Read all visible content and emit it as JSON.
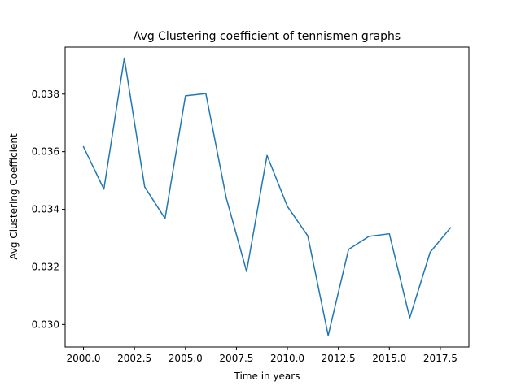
{
  "chart_data": {
    "type": "line",
    "title": "Avg Clustering coefficient of tennismen graphs",
    "xlabel": "Time in years",
    "ylabel": "Avg Clustering Coefficient",
    "xlim": [
      1999.1,
      2018.9
    ],
    "ylim": [
      0.02922,
      0.03963
    ],
    "xticks": [
      2000.0,
      2002.5,
      2005.0,
      2007.5,
      2010.0,
      2012.5,
      2015.0,
      2017.5
    ],
    "xtick_labels": [
      "2000.0",
      "2002.5",
      "2005.0",
      "2007.5",
      "2010.0",
      "2012.5",
      "2015.0",
      "2017.5"
    ],
    "yticks": [
      0.03,
      0.032,
      0.034,
      0.036,
      0.038
    ],
    "ytick_labels": [
      "0.030",
      "0.032",
      "0.034",
      "0.036",
      "0.038"
    ],
    "grid": false,
    "legend": "none",
    "series": [
      {
        "color": "#1f77b4",
        "x": [
          2000,
          2001,
          2002,
          2003,
          2004,
          2005,
          2006,
          2007,
          2008,
          2009,
          2010,
          2011,
          2012,
          2013,
          2014,
          2015,
          2016,
          2017,
          2018
        ],
        "values": [
          0.03617,
          0.0347,
          0.03925,
          0.03478,
          0.03368,
          0.03794,
          0.03802,
          0.0344,
          0.03184,
          0.03587,
          0.0341,
          0.03308,
          0.02962,
          0.03261,
          0.03306,
          0.03315,
          0.03023,
          0.03251,
          0.03336
        ]
      }
    ]
  }
}
